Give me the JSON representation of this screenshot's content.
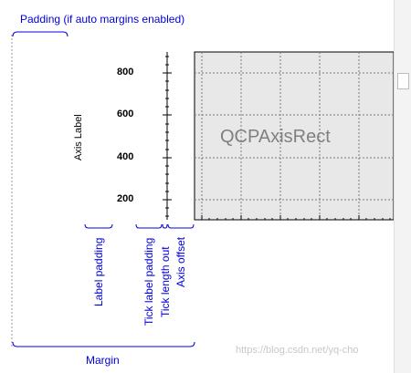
{
  "labels": {
    "padding": "Padding (if auto margins enabled)",
    "axis_label": "Axis Label",
    "label_padding": "Label padding",
    "tick_label_padding": "Tick label padding",
    "tick_length_out": "Tick length out",
    "axis_offset": "Axis offset",
    "margin": "Margin",
    "axis_rect": "QCPAxisRect"
  },
  "ticks": [
    "800",
    "600",
    "400",
    "200"
  ],
  "watermark": "https://blog.csdn.net/yq-cho",
  "colors": {
    "annotation": "#0000dd",
    "rect_fill": "#e8e8e8",
    "grid": "#7a7a7a"
  }
}
